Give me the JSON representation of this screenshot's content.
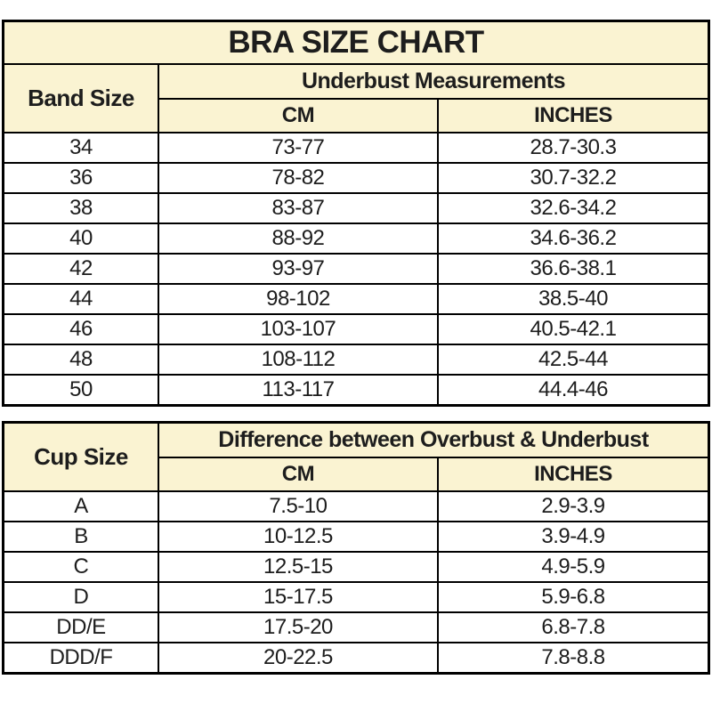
{
  "page": {
    "title": "BRA SIZE CHART"
  },
  "colors": {
    "header_background": "#faf3d2",
    "row_background": "#ffffff",
    "border": "#000000",
    "text": "#1d1d1d"
  },
  "band_table": {
    "corner_label": "Band Size",
    "group_header": "Underbust Measurements",
    "col_headers": [
      "CM",
      "INCHES"
    ],
    "rows": [
      [
        "34",
        "73-77",
        "28.7-30.3"
      ],
      [
        "36",
        "78-82",
        "30.7-32.2"
      ],
      [
        "38",
        "83-87",
        "32.6-34.2"
      ],
      [
        "40",
        "88-92",
        "34.6-36.2"
      ],
      [
        "42",
        "93-97",
        "36.6-38.1"
      ],
      [
        "44",
        "98-102",
        "38.5-40"
      ],
      [
        "46",
        "103-107",
        "40.5-42.1"
      ],
      [
        "48",
        "108-112",
        "42.5-44"
      ],
      [
        "50",
        "113-117",
        "44.4-46"
      ]
    ]
  },
  "cup_table": {
    "corner_label": "Cup Size",
    "group_header": "Difference between Overbust & Underbust",
    "col_headers": [
      "CM",
      "INCHES"
    ],
    "rows": [
      [
        "A",
        "7.5-10",
        "2.9-3.9"
      ],
      [
        "B",
        "10-12.5",
        "3.9-4.9"
      ],
      [
        "C",
        "12.5-15",
        "4.9-5.9"
      ],
      [
        "D",
        "15-17.5",
        "5.9-6.8"
      ],
      [
        "DD/E",
        "17.5-20",
        "6.8-7.8"
      ],
      [
        "DDD/F",
        "20-22.5",
        "7.8-8.8"
      ]
    ]
  }
}
